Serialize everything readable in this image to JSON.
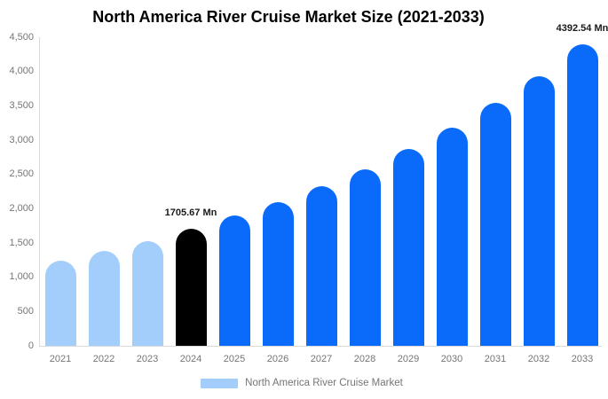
{
  "title": "North America River Cruise Market Size (2021-2033)",
  "chart_data": {
    "type": "bar",
    "categories": [
      "2021",
      "2022",
      "2023",
      "2024",
      "2025",
      "2026",
      "2027",
      "2028",
      "2029",
      "2030",
      "2031",
      "2032",
      "2033"
    ],
    "values": [
      1245,
      1380,
      1530,
      1705.67,
      1895,
      2095,
      2330,
      2570,
      2870,
      3175,
      3545,
      3930,
      4392.54
    ],
    "bar_colors": [
      "#a3cdfa",
      "#a3cdfa",
      "#a3cdfa",
      "#000000",
      "#0a6bfa",
      "#0a6bfa",
      "#0a6bfa",
      "#0a6bfa",
      "#0a6bfa",
      "#0a6bfa",
      "#0a6bfa",
      "#0a6bfa",
      "#0a6bfa"
    ],
    "title": "North America River Cruise Market Size (2021-2033)",
    "xlabel": "",
    "ylabel": "",
    "ylim": [
      0,
      4500
    ],
    "ytick_step": 500,
    "yticks": [
      "0",
      "500",
      "1,000",
      "1,500",
      "2,000",
      "2,500",
      "3,000",
      "3,500",
      "4,000",
      "4,500"
    ],
    "grid": false,
    "annotations": [
      {
        "category": "2024",
        "text": "1705.67 Mn"
      },
      {
        "category": "2033",
        "text": "4392.54 Mn"
      }
    ],
    "legend": {
      "position": "bottom",
      "items": [
        {
          "label": "North America River Cruise Market",
          "color": "#a3cdfa"
        }
      ]
    }
  },
  "colors": {
    "background": "#ffffff",
    "axis_line": "#d9d9d9",
    "tick_text": "#757575",
    "annotation_text": "#1a1a1a",
    "title_text": "#000000",
    "historical_bar": "#a3cdfa",
    "base_year_bar": "#000000",
    "forecast_bar": "#0a6bfa"
  }
}
